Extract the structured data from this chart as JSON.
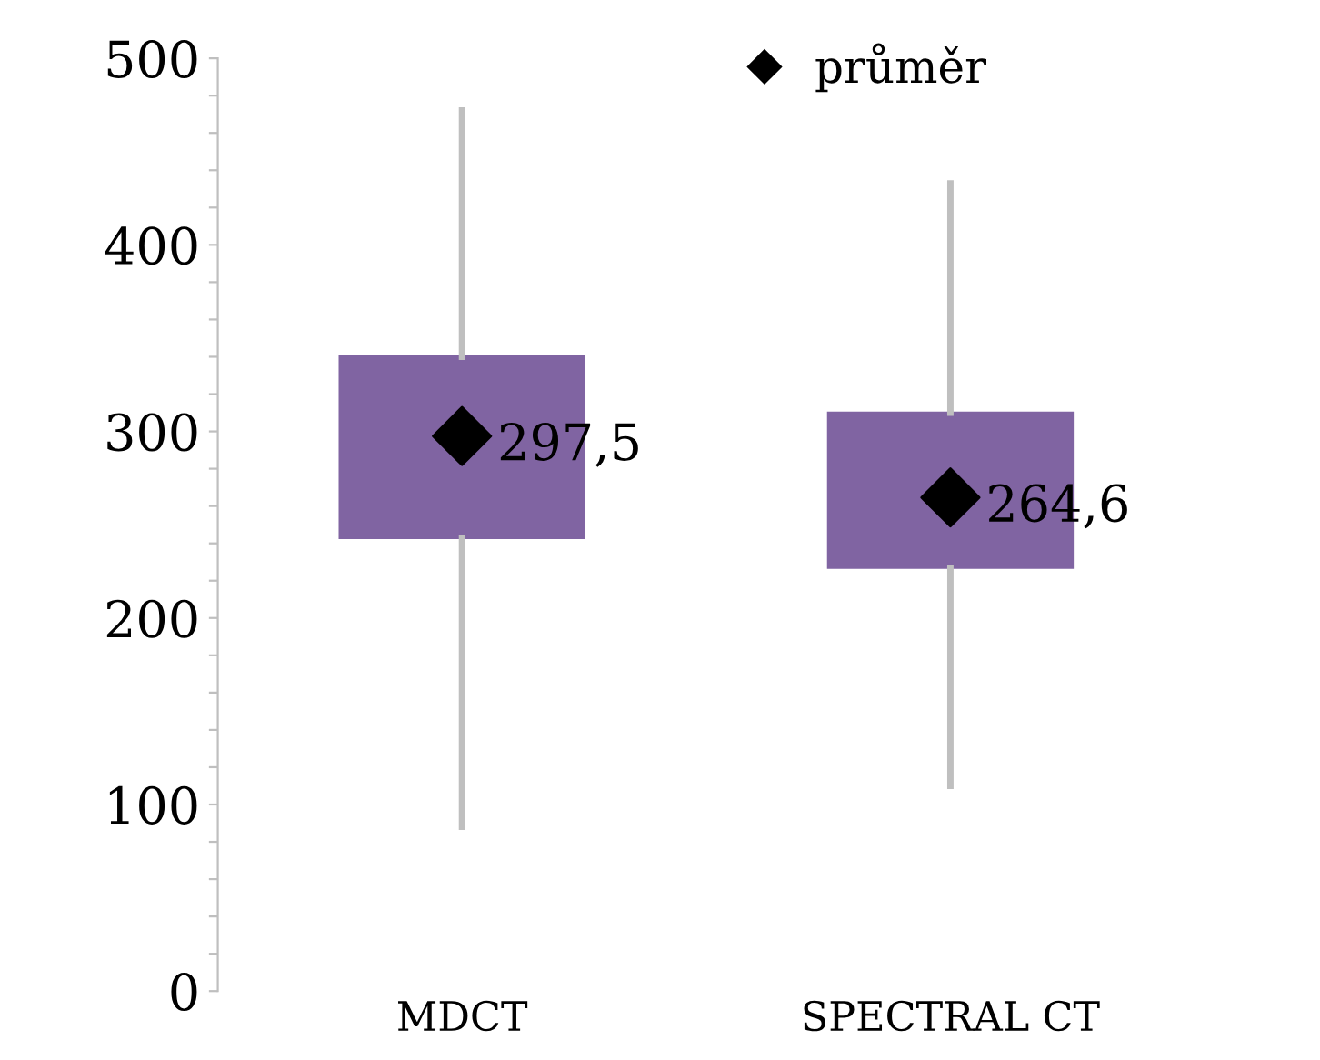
{
  "chart_data": {
    "type": "box",
    "categories": [
      "MDCT",
      "SPECTRAL CT"
    ],
    "series": [
      {
        "color": "#8064a2",
        "boxes": [
          {
            "low": 88,
            "q1": 243,
            "q3": 340,
            "high": 472
          },
          {
            "low": 110,
            "q1": 227,
            "q3": 310,
            "high": 433
          }
        ]
      },
      {
        "type": "scatter",
        "name": "průměr",
        "color": "#000000",
        "x": [
          "MDCT",
          "SPECTRAL CT"
        ],
        "values": [
          297.5,
          264.6
        ],
        "value_labels": [
          "297,5",
          "264,6"
        ]
      }
    ],
    "ylim": [
      0,
      500
    ],
    "yticks": [
      0,
      {
        "value": 20,
        "label": null
      },
      {
        "value": 40,
        "label": null
      },
      {
        "value": 60,
        "label": null
      },
      {
        "value": 80,
        "label": null
      },
      100,
      {
        "value": 120,
        "label": null
      },
      {
        "value": 140,
        "label": null
      },
      {
        "value": 160,
        "label": null
      },
      {
        "value": 180,
        "label": null
      },
      200,
      {
        "value": 220,
        "label": null
      },
      {
        "value": 240,
        "label": null
      },
      {
        "value": 260,
        "label": null
      },
      {
        "value": 280,
        "label": null
      },
      300,
      {
        "value": 320,
        "label": null
      },
      {
        "value": 340,
        "label": null
      },
      {
        "value": 360,
        "label": null
      },
      {
        "value": 380,
        "label": null
      },
      400,
      {
        "value": 420,
        "label": null
      },
      {
        "value": 440,
        "label": null
      },
      {
        "value": 460,
        "label": null
      },
      {
        "value": 480,
        "label": null
      },
      500
    ],
    "marker": "diamond",
    "legend": "top"
  }
}
